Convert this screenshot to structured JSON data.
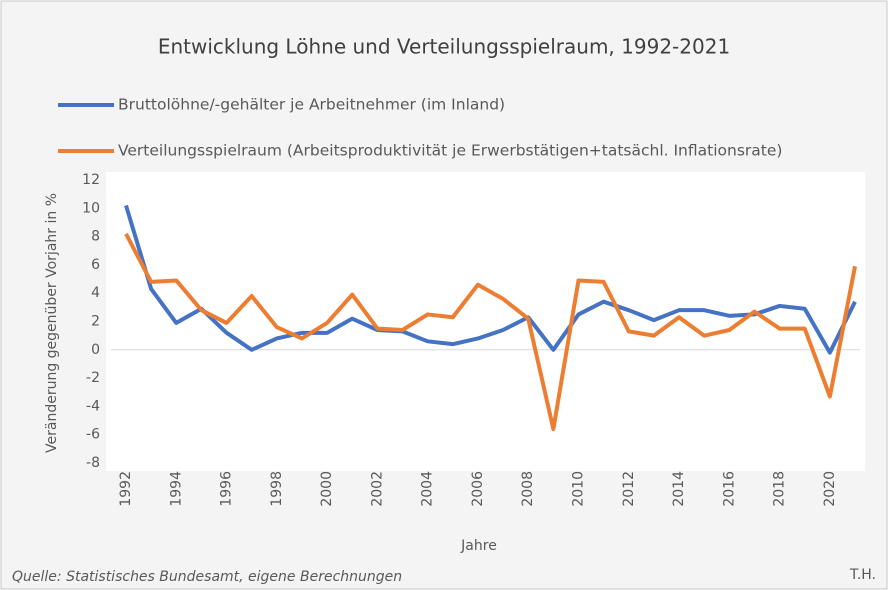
{
  "chart_data": {
    "type": "line",
    "title": "Entwicklung Löhne und Verteilungsspielraum, 1992-2021",
    "x": [
      1992,
      1993,
      1994,
      1995,
      1996,
      1997,
      1998,
      1999,
      2000,
      2001,
      2002,
      2003,
      2004,
      2005,
      2006,
      2007,
      2008,
      2009,
      2010,
      2011,
      2012,
      2013,
      2014,
      2015,
      2016,
      2017,
      2018,
      2019,
      2020,
      2021
    ],
    "series": [
      {
        "name": "Bruttolöhne/-gehälter je Arbeitnehmer (im Inland)",
        "color": "#4472c4",
        "values": [
          10.2,
          4.3,
          1.9,
          2.9,
          1.2,
          0.0,
          0.8,
          1.2,
          1.2,
          2.2,
          1.4,
          1.3,
          0.6,
          0.4,
          0.8,
          1.4,
          2.3,
          0.0,
          2.5,
          3.4,
          2.8,
          2.1,
          2.8,
          2.8,
          2.4,
          2.5,
          3.1,
          2.9,
          -0.2,
          3.4
        ]
      },
      {
        "name": "Verteilungsspielraum (Arbeitsproduktivität je Erwerbstätigen+tatsächl. Inflationsrate)",
        "color": "#ed7d31",
        "values": [
          8.2,
          4.8,
          4.9,
          2.8,
          1.9,
          3.8,
          1.6,
          0.8,
          1.9,
          3.9,
          1.5,
          1.4,
          2.5,
          2.3,
          4.6,
          3.6,
          2.2,
          -5.6,
          4.9,
          4.8,
          1.3,
          1.0,
          2.3,
          1.0,
          1.4,
          2.7,
          1.5,
          1.5,
          -3.3,
          5.9
        ]
      }
    ],
    "xlim": [
      1992,
      2021
    ],
    "xticks": [
      1992,
      1994,
      1996,
      1998,
      2000,
      2002,
      2004,
      2006,
      2008,
      2010,
      2012,
      2014,
      2016,
      2018,
      2020
    ],
    "ylim": [
      -8,
      12
    ],
    "yticks": [
      -8,
      -6,
      -4,
      -2,
      0,
      2,
      4,
      6,
      8,
      10,
      12
    ],
    "y_label": "Veränderung gegenüber Vorjahr in %",
    "x_label": "Jahre",
    "source": "Quelle: Statistisches Bundesamt, eigene Berechnungen",
    "author": "T.H."
  }
}
